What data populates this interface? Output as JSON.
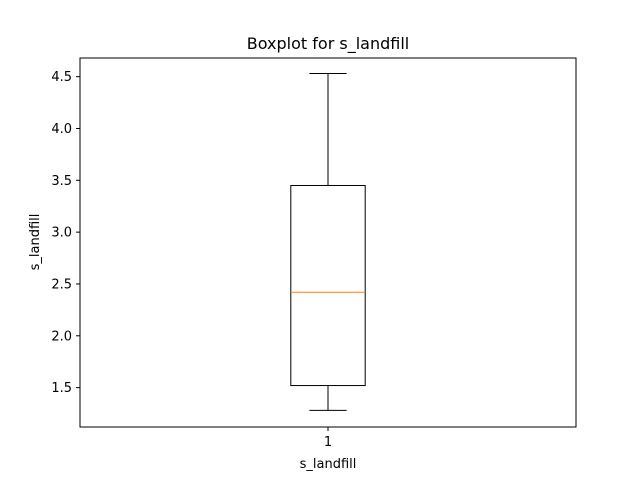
{
  "chart_data": {
    "type": "boxplot",
    "title": "Boxplot for s_landfill",
    "xlabel": "s_landfill",
    "ylabel": "s_landfill",
    "categories": [
      "1"
    ],
    "ylim": [
      1.12,
      4.68
    ],
    "yticks": [
      1.5,
      2.0,
      2.5,
      3.0,
      3.5,
      4.0,
      4.5
    ],
    "ytick_labels": [
      "1.5",
      "2.0",
      "2.5",
      "3.0",
      "3.5",
      "4.0",
      "4.5"
    ],
    "series": [
      {
        "category": "1",
        "whisker_low": 1.28,
        "q1": 1.52,
        "median": 2.42,
        "q3": 3.45,
        "whisker_high": 4.53
      }
    ],
    "grid": false,
    "colors": {
      "box": "#000000",
      "median": "#ff7f0e",
      "axes": "#000000",
      "background": "#ffffff"
    }
  }
}
